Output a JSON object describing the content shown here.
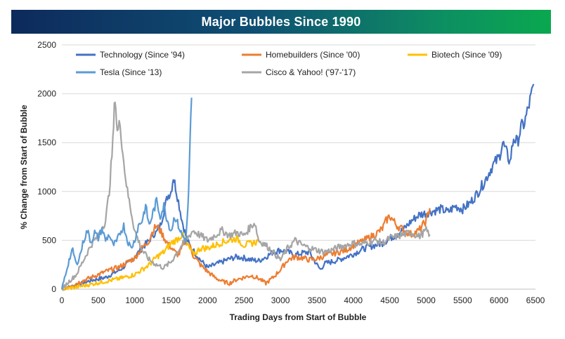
{
  "title": "Major Bubbles Since 1990",
  "chart_data": {
    "type": "line",
    "title": "Major Bubbles Since 1990",
    "xlabel": "Trading Days from Start of Bubble",
    "ylabel": "% Change from Start of Bubble",
    "xlim": [
      0,
      6500
    ],
    "ylim": [
      0,
      2500
    ],
    "xticks": [
      "0",
      "500",
      "1000",
      "1500",
      "2000",
      "2500",
      "3000",
      "3500",
      "4000",
      "4500",
      "5000",
      "5500",
      "6000",
      "6500"
    ],
    "yticks": [
      "0",
      "500",
      "1000",
      "1500",
      "2000",
      "2500"
    ],
    "grid": "horizontal",
    "legend_position": "top",
    "series": [
      {
        "name": "Technology (Since '94)",
        "color": "#4472c4",
        "x": [
          0,
          200,
          400,
          600,
          800,
          900,
          1000,
          1100,
          1200,
          1250,
          1300,
          1350,
          1400,
          1450,
          1500,
          1530,
          1560,
          1600,
          1650,
          1700,
          1750,
          1800,
          1850,
          1900,
          1950,
          2000,
          2100,
          2200,
          2300,
          2400,
          2500,
          2600,
          2700,
          2800,
          2900,
          3000,
          3100,
          3200,
          3300,
          3400,
          3500,
          3550,
          3600,
          3700,
          3800,
          3900,
          4000,
          4100,
          4200,
          4300,
          4400,
          4500,
          4600,
          4700,
          4800,
          4900,
          5000,
          5100,
          5200,
          5300,
          5400,
          5500,
          5600,
          5700,
          5800,
          5900,
          6000,
          6050,
          6100,
          6150,
          6200,
          6250,
          6300,
          6350,
          6400,
          6450,
          6480
        ],
        "y": [
          0,
          40,
          90,
          120,
          200,
          260,
          330,
          420,
          500,
          560,
          580,
          650,
          800,
          950,
          1000,
          1150,
          1050,
          900,
          700,
          550,
          450,
          400,
          350,
          300,
          260,
          220,
          250,
          280,
          310,
          330,
          320,
          300,
          290,
          330,
          380,
          400,
          380,
          350,
          370,
          380,
          250,
          200,
          260,
          280,
          300,
          330,
          360,
          400,
          430,
          450,
          470,
          520,
          560,
          620,
          700,
          760,
          780,
          800,
          820,
          790,
          850,
          820,
          880,
          980,
          1100,
          1250,
          1350,
          1500,
          1400,
          1300,
          1550,
          1500,
          1650,
          1700,
          1850,
          2000,
          2090
        ]
      },
      {
        "name": "Homebuilders (Since '00)",
        "color": "#ed7d31",
        "x": [
          0,
          200,
          400,
          600,
          800,
          1000,
          1100,
          1200,
          1250,
          1300,
          1350,
          1400,
          1450,
          1500,
          1550,
          1600,
          1650,
          1700,
          1750,
          1800,
          1900,
          2000,
          2100,
          2200,
          2300,
          2400,
          2500,
          2600,
          2700,
          2800,
          2900,
          3000,
          3100,
          3200,
          3300,
          3400,
          3500,
          3600,
          3700,
          3800,
          3900,
          4000,
          4100,
          4200,
          4300,
          4400,
          4450,
          4500,
          4550,
          4600,
          4700,
          4800,
          4900,
          5000,
          5050
        ],
        "y": [
          0,
          60,
          120,
          180,
          230,
          320,
          420,
          500,
          600,
          650,
          600,
          530,
          470,
          430,
          380,
          350,
          420,
          500,
          450,
          350,
          250,
          180,
          120,
          80,
          60,
          100,
          120,
          140,
          110,
          60,
          120,
          200,
          300,
          330,
          320,
          300,
          310,
          340,
          360,
          380,
          400,
          450,
          480,
          520,
          560,
          620,
          700,
          750,
          700,
          650,
          600,
          560,
          600,
          700,
          830
        ]
      },
      {
        "name": "Biotech (Since '09)",
        "color": "#ffc000",
        "x": [
          0,
          200,
          400,
          600,
          800,
          1000,
          1100,
          1200,
          1300,
          1400,
          1500,
          1600,
          1650,
          1700,
          1750,
          1800,
          1850,
          1900,
          2000,
          2100,
          2200,
          2300,
          2400,
          2500,
          2600,
          2700
        ],
        "y": [
          0,
          20,
          50,
          80,
          110,
          150,
          200,
          250,
          330,
          380,
          470,
          520,
          560,
          480,
          420,
          360,
          380,
          420,
          420,
          450,
          480,
          500,
          520,
          450,
          470,
          490
        ]
      },
      {
        "name": "Tesla (Since '13)",
        "color": "#5b9bd5",
        "x": [
          0,
          50,
          100,
          150,
          200,
          250,
          300,
          350,
          400,
          450,
          500,
          550,
          600,
          650,
          700,
          750,
          800,
          850,
          900,
          950,
          1000,
          1050,
          1100,
          1150,
          1200,
          1250,
          1300,
          1350,
          1400,
          1450,
          1500,
          1550,
          1600,
          1650,
          1700,
          1720,
          1740,
          1760,
          1780
        ],
        "y": [
          0,
          150,
          300,
          400,
          250,
          350,
          500,
          600,
          480,
          580,
          520,
          620,
          500,
          560,
          450,
          480,
          580,
          650,
          500,
          420,
          500,
          650,
          700,
          850,
          650,
          780,
          900,
          750,
          850,
          700,
          600,
          750,
          650,
          550,
          500,
          700,
          1000,
          1500,
          1960
        ]
      },
      {
        "name": "Cisco & Yahoo! ('97-'17)",
        "color": "#a5a5a5",
        "x": [
          0,
          100,
          200,
          300,
          400,
          500,
          600,
          650,
          700,
          730,
          760,
          800,
          850,
          900,
          950,
          1000,
          1100,
          1200,
          1300,
          1400,
          1500,
          1600,
          1700,
          1800,
          1900,
          2000,
          2100,
          2200,
          2300,
          2400,
          2500,
          2600,
          2650,
          2700,
          2800,
          2900,
          3000,
          3100,
          3200,
          3300,
          3400,
          3500,
          3600,
          3700,
          3800,
          3900,
          4000,
          4100,
          4200,
          4300,
          4400,
          4500,
          4600,
          4700,
          4800,
          4900,
          5000,
          5050
        ],
        "y": [
          0,
          80,
          150,
          300,
          450,
          550,
          700,
          1000,
          1500,
          2000,
          1600,
          1700,
          1300,
          1000,
          800,
          600,
          400,
          300,
          250,
          220,
          280,
          400,
          500,
          600,
          550,
          500,
          550,
          600,
          550,
          580,
          550,
          650,
          680,
          500,
          450,
          380,
          300,
          420,
          500,
          450,
          420,
          400,
          380,
          400,
          430,
          450,
          470,
          460,
          480,
          500,
          470,
          520,
          540,
          560,
          580,
          540,
          600,
          560
        ]
      }
    ]
  }
}
